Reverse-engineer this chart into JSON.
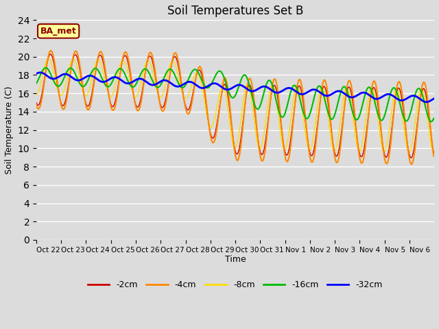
{
  "title": "Soil Temperatures Set B",
  "xlabel": "Time",
  "ylabel": "Soil Temperature (C)",
  "ylim": [
    0,
    24
  ],
  "yticks": [
    0,
    2,
    4,
    6,
    8,
    10,
    12,
    14,
    16,
    18,
    20,
    22,
    24
  ],
  "background_color": "#dcdcdc",
  "plot_bg_color": "#dcdcdc",
  "annotation_text": "BA_met",
  "annotation_bg": "#ffff99",
  "annotation_border": "#8b0000",
  "annotation_text_color": "#8b0000",
  "legend_labels": [
    "-2cm",
    "-4cm",
    "-8cm",
    "-16cm",
    "-32cm"
  ],
  "line_colors": [
    "#cc0000",
    "#ff8800",
    "#ffdd00",
    "#00bb00",
    "#0000ff"
  ],
  "line_widths": [
    1.0,
    1.5,
    1.0,
    1.5,
    2.0
  ],
  "xtick_labels": [
    "Oct 22",
    "Oct 23",
    "Oct 24",
    "Oct 25",
    "Oct 26",
    "Oct 27",
    "Oct 28",
    "Oct 29",
    "Oct 30",
    "Oct 31",
    "Nov 1",
    "Nov 2",
    "Nov 3",
    "Nov 4",
    "Nov 5",
    "Nov 6"
  ],
  "num_days": 16,
  "points_per_day": 48
}
